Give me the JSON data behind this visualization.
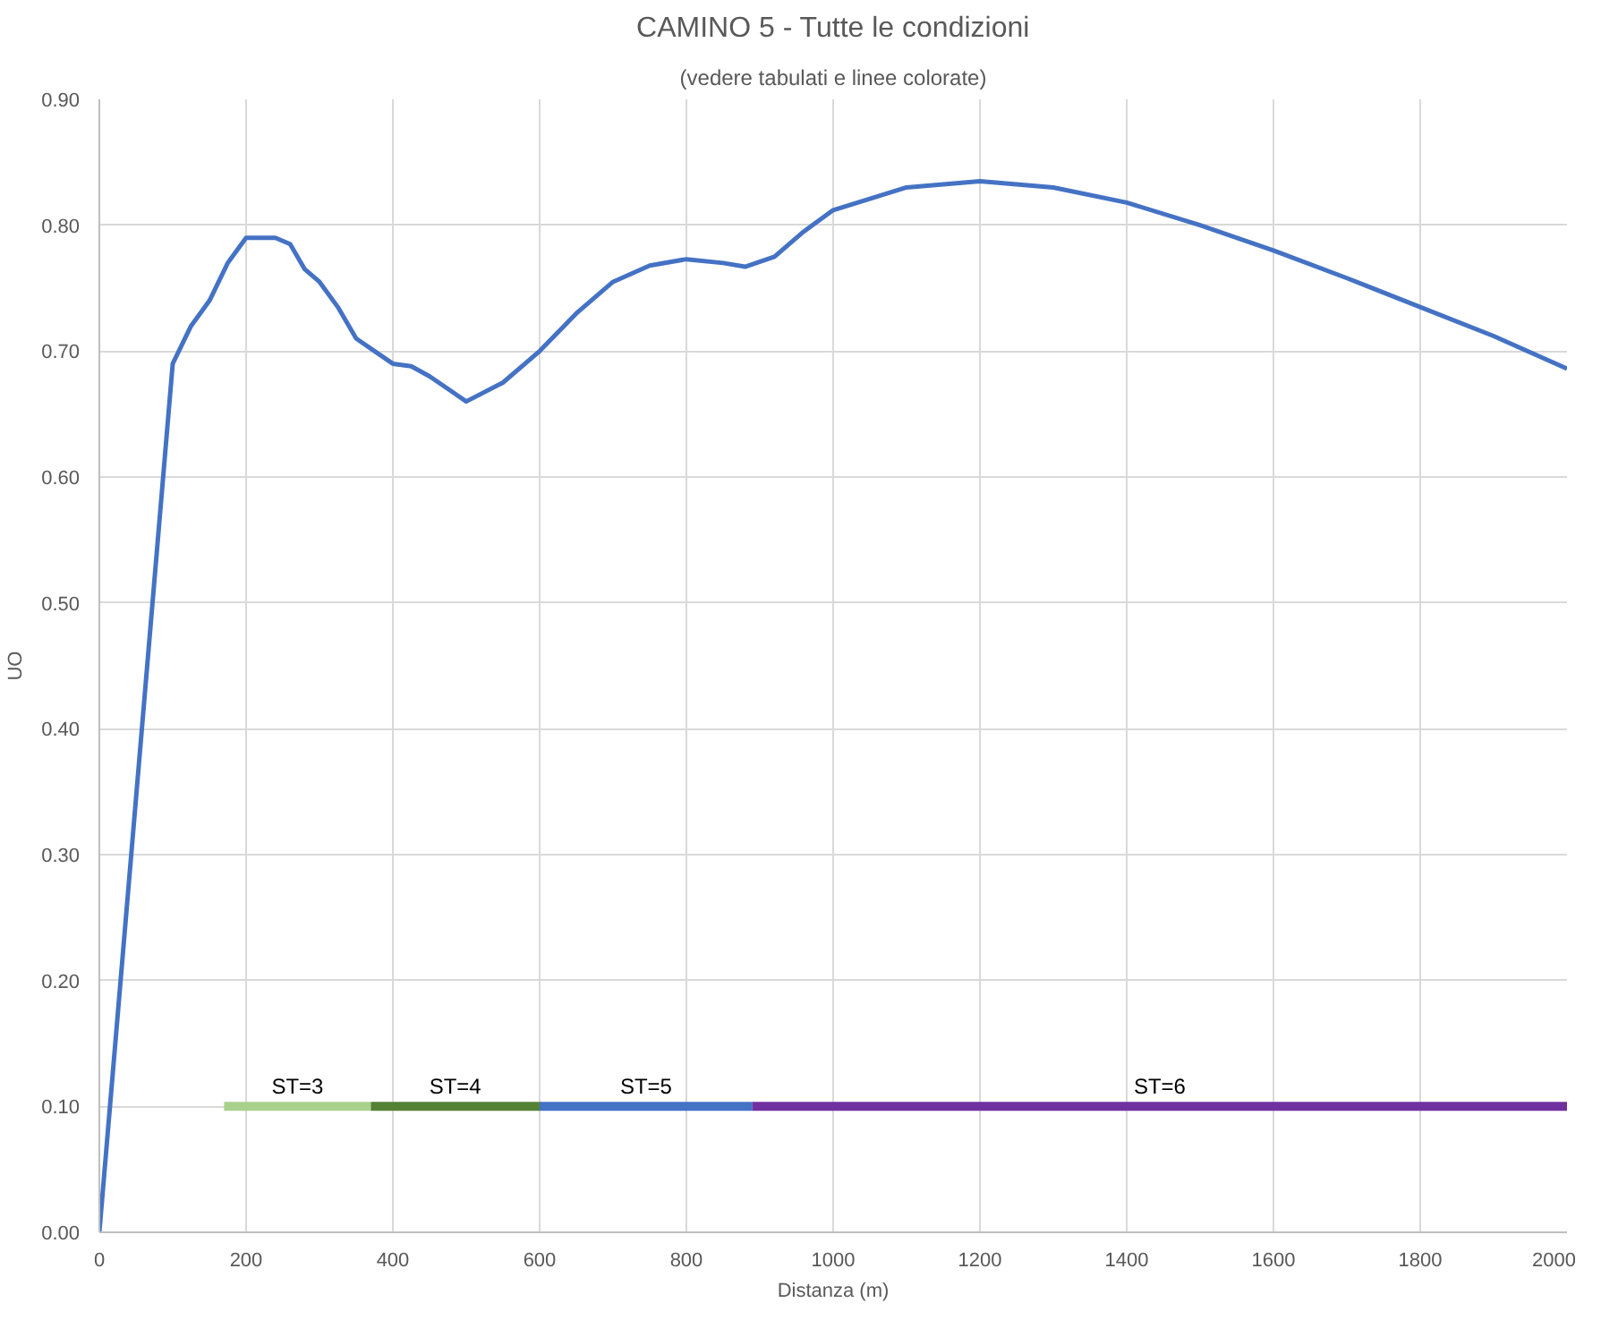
{
  "chart_data": {
    "type": "line",
    "title": "CAMINO 5 - Tutte le condizioni",
    "subtitle": "(vedere tabulati e linee colorate)",
    "xlabel": "Distanza (m)",
    "ylabel": "UO",
    "xlim": [
      0,
      2000
    ],
    "xticks": [
      0,
      200,
      400,
      600,
      800,
      1000,
      1200,
      1400,
      1600,
      1800,
      2000
    ],
    "ylim": [
      0,
      0.9
    ],
    "yticks": [
      {
        "value": 0,
        "label": "0.00"
      },
      {
        "value": 0.1,
        "label": "0.10"
      },
      {
        "value": 0.2,
        "label": "0.20"
      },
      {
        "value": 0.3,
        "label": "0.30"
      },
      {
        "value": 0.4,
        "label": "0.40"
      },
      {
        "value": 0.5,
        "label": "0.50"
      },
      {
        "value": 0.6,
        "label": "0.60"
      },
      {
        "value": 0.7,
        "label": "0.70"
      },
      {
        "value": 0.8,
        "label": "0.80"
      },
      {
        "value": 0.9,
        "label": "0.90"
      }
    ],
    "grid": true,
    "legend": false,
    "series": [
      {
        "color": "#4472c4",
        "x": [
          0,
          100,
          125,
          150,
          175,
          200,
          240,
          260,
          280,
          300,
          325,
          350,
          375,
          400,
          425,
          450,
          500,
          550,
          600,
          650,
          700,
          750,
          800,
          850,
          880,
          920,
          960,
          1000,
          1100,
          1200,
          1300,
          1400,
          1500,
          1600,
          1700,
          1800,
          1900,
          2000
        ],
        "values": [
          0,
          0.69,
          0.72,
          0.74,
          0.77,
          0.79,
          0.79,
          0.785,
          0.765,
          0.755,
          0.735,
          0.71,
          0.7,
          0.69,
          0.688,
          0.68,
          0.66,
          0.675,
          0.7,
          0.73,
          0.755,
          0.768,
          0.773,
          0.77,
          0.767,
          0.775,
          0.795,
          0.812,
          0.83,
          0.835,
          0.83,
          0.818,
          0.8,
          0.78,
          0.758,
          0.735,
          0.712,
          0.686
        ]
      },
      {
        "name": "ST=3",
        "color": "#a9d18e",
        "x": [
          170,
          370
        ],
        "values": [
          0.1,
          0.1
        ]
      },
      {
        "name": "ST=4",
        "color": "#548235",
        "x": [
          370,
          600
        ],
        "values": [
          0.1,
          0.1
        ]
      },
      {
        "name": "ST=5",
        "color": "#4472c4",
        "x": [
          600,
          890
        ],
        "values": [
          0.1,
          0.1
        ]
      },
      {
        "name": "ST=6",
        "color": "#7030a0",
        "x": [
          890,
          2000
        ],
        "values": [
          0.1,
          0.1
        ]
      }
    ]
  }
}
